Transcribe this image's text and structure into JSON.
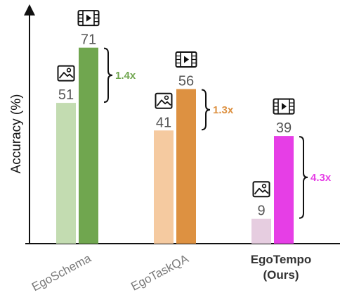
{
  "chart_data": {
    "type": "bar",
    "ylabel": "Accuracy (%)",
    "ylim": [
      0,
      95
    ],
    "grid": false,
    "groups": [
      {
        "name": "EgoSchema",
        "name_lines": [
          "EgoSchema"
        ],
        "bold": false,
        "image_value": 51,
        "video_value": 71,
        "ratio_label": "1.4x",
        "image_color": "#c3dcb1",
        "video_color": "#70a64f",
        "ratio_color": "#70a64f"
      },
      {
        "name": "EgoTaskQA",
        "name_lines": [
          "EgoTaskQA"
        ],
        "bold": false,
        "image_value": 41,
        "video_value": 56,
        "ratio_label": "1.3x",
        "image_color": "#f5caa0",
        "video_color": "#dd9141",
        "ratio_color": "#dd9141"
      },
      {
        "name": "EgoTempo (Ours)",
        "name_lines": [
          "EgoTempo",
          "(Ours)"
        ],
        "bold": true,
        "image_value": 9,
        "video_value": 39,
        "ratio_label": "4.3x",
        "image_color": "#e6cde0",
        "video_color": "#e63ee6",
        "ratio_color": "#e63ee6"
      }
    ]
  },
  "icons": {
    "image": "image-icon",
    "video": "video-icon"
  }
}
